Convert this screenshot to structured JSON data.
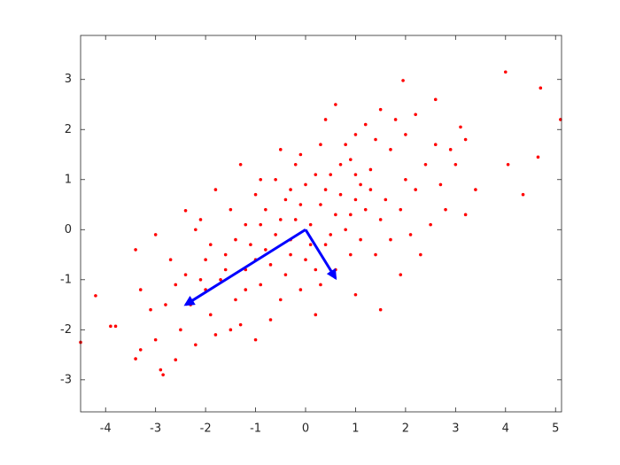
{
  "chart_data": {
    "type": "scatter",
    "xlim": [
      -4.5,
      5.12
    ],
    "ylim": [
      -3.64,
      3.88
    ],
    "xticks": [
      -4,
      -3,
      -2,
      -1,
      0,
      1,
      2,
      3,
      4,
      5
    ],
    "yticks": [
      -3,
      -2,
      -1,
      0,
      1,
      2,
      3
    ],
    "grid": false,
    "series": [
      {
        "color": "#ff0000",
        "x": [
          4.0,
          4.7,
          5.1,
          4.05,
          4.35,
          4.65,
          -4.5,
          -4.2,
          -3.8,
          -3.9,
          -3.4,
          -2.85,
          -2.9,
          1.95,
          2.6,
          -3.0,
          -3.4,
          -3.3,
          -3.0,
          -3.3,
          3.1,
          3.2,
          3.4,
          3.0,
          2.5,
          -2.4,
          0.6,
          -0.5,
          1.5,
          -2.6,
          -2.5,
          -2.2,
          -1.5,
          -1.0,
          -0.7,
          0.2,
          1.0,
          1.9,
          2.3,
          2.8,
          3.2,
          2.6,
          2.2,
          1.5,
          1.0,
          0.4,
          -0.2,
          -0.9,
          -1.3,
          -1.8,
          -2.1,
          -2.7,
          -2.8,
          -2.0,
          -1.6,
          -1.2,
          -0.8,
          -0.4,
          0.0,
          0.5,
          0.9,
          1.3,
          1.7,
          2.0,
          1.6,
          1.2,
          0.8,
          0.4,
          0.0,
          -0.4,
          -0.9,
          -1.4,
          -1.9,
          -1.1,
          -0.6,
          -0.2,
          0.3,
          0.7,
          1.1,
          1.5,
          1.9,
          2.2,
          2.4,
          2.0,
          1.4,
          0.9,
          0.5,
          0.1,
          -0.3,
          -0.7,
          -1.2,
          -1.7,
          -2.3,
          -2.4,
          -1.9,
          -1.5,
          -1.0,
          -0.6,
          -0.1,
          0.3,
          0.7,
          1.1,
          1.4,
          0.6,
          -0.1,
          -0.5,
          -1.3,
          -1.8,
          0.3,
          1.7,
          2.1,
          2.7,
          2.9,
          1.8,
          1.2,
          0.8,
          0.2,
          -0.3,
          -0.9,
          -1.4,
          -2.0,
          -2.6,
          -3.1,
          -2.2,
          -0.8,
          0.1,
          0.6,
          1.0,
          1.3,
          1.0,
          0.4,
          -0.1,
          -0.5,
          -1.0,
          -1.6,
          -2.1,
          -1.2,
          -0.3,
          0.2,
          0.9
        ],
        "values": [
          3.15,
          2.83,
          2.2,
          1.3,
          0.7,
          1.45,
          -2.25,
          -1.32,
          -1.93,
          -1.93,
          -2.58,
          -2.9,
          -2.8,
          2.98,
          2.6,
          -0.1,
          -0.4,
          -1.2,
          -2.2,
          -2.4,
          2.05,
          1.8,
          0.8,
          1.3,
          0.1,
          0.38,
          2.5,
          1.6,
          -1.6,
          -2.6,
          -2.0,
          -2.3,
          -2.0,
          -2.2,
          -1.8,
          -1.7,
          -1.3,
          -0.9,
          -0.5,
          0.4,
          0.3,
          1.7,
          2.3,
          2.4,
          1.9,
          2.2,
          1.3,
          1.0,
          1.3,
          0.8,
          0.2,
          -0.6,
          -1.5,
          -1.2,
          -0.5,
          0.1,
          0.4,
          0.6,
          0.9,
          1.1,
          1.4,
          1.2,
          1.6,
          1.0,
          0.6,
          0.4,
          0.0,
          -0.3,
          -0.6,
          -0.9,
          -1.1,
          -1.4,
          -1.7,
          -0.3,
          -0.1,
          0.2,
          0.5,
          0.7,
          0.9,
          0.2,
          0.4,
          0.8,
          1.3,
          1.9,
          1.8,
          0.3,
          -0.1,
          -0.3,
          -0.5,
          -0.7,
          -0.8,
          -1.0,
          -1.5,
          -0.9,
          -0.3,
          0.4,
          0.7,
          1.0,
          1.5,
          1.7,
          1.3,
          -0.2,
          -0.5,
          -0.8,
          -1.2,
          -1.4,
          -1.9,
          -2.1,
          -1.1,
          -0.2,
          -0.1,
          0.9,
          1.6,
          2.2,
          2.1,
          1.7,
          1.1,
          0.8,
          0.1,
          -0.2,
          -0.6,
          -1.1,
          -1.6,
          0.0,
          -0.4,
          0.1,
          0.3,
          0.6,
          0.8,
          1.1,
          0.8,
          0.5,
          0.2,
          -0.6,
          -0.8,
          -1.0,
          -1.2,
          -0.2,
          -0.8,
          -0.5
        ]
      }
    ],
    "vectors": [
      {
        "color": "#0000ff",
        "x": [
          0,
          -2.4
        ],
        "y": [
          0,
          -1.5
        ]
      },
      {
        "color": "#0000ff",
        "x": [
          0,
          0.6
        ],
        "y": [
          0,
          -0.97
        ]
      }
    ]
  }
}
